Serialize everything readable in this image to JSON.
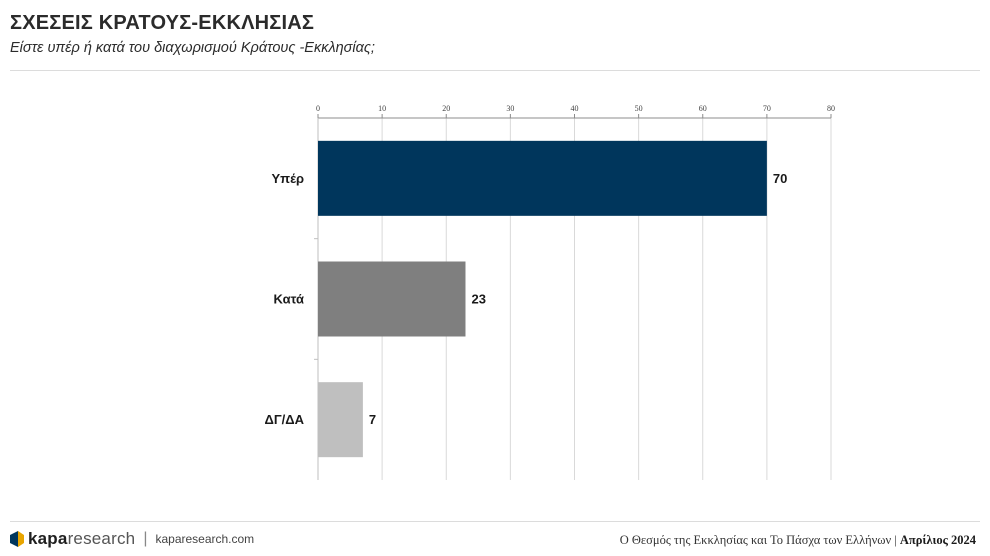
{
  "header": {
    "title": "ΣΧΕΣΕΙΣ ΚΡΑΤΟΥΣ-ΕΚΚΛΗΣΙΑΣ",
    "subtitle": "Είστε υπέρ ή κατά του διαχωρισμού Κράτους -Εκκλησίας;"
  },
  "chart_data": {
    "type": "bar",
    "orientation": "horizontal",
    "title": "",
    "xlabel": "",
    "ylabel": "",
    "xlim": [
      0,
      80
    ],
    "ticks": [
      0,
      10,
      20,
      30,
      40,
      50,
      60,
      70,
      80
    ],
    "axis_position": "top",
    "grid": true,
    "categories": [
      "Υπέρ",
      "Κατά",
      "ΔΓ/ΔΑ"
    ],
    "values": [
      70,
      23,
      7
    ],
    "colors": [
      "#00365c",
      "#7f7f7f",
      "#bfbfbf"
    ]
  },
  "footer": {
    "brand_bold": "kapa",
    "brand_light": "research",
    "separator": "|",
    "site": "kaparesearch.com",
    "study": "Ο Θεσμός της Εκκλησίας και Το Πάσχα των Ελλήνων |",
    "date": "Απρίλιος 2024"
  }
}
